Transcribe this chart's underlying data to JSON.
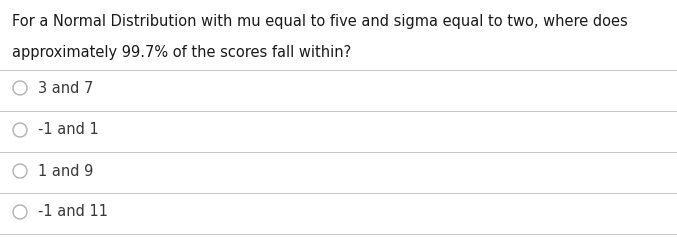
{
  "question_line1": "For a Normal Distribution with mu equal to five and sigma equal to two, where does",
  "question_line2": "approximately 99.7% of the scores fall within?",
  "options": [
    "3 and 7",
    "-1 and 1",
    "1 and 9",
    "-1 and 11"
  ],
  "background_color": "#ffffff",
  "text_color": "#1a1a1a",
  "option_text_color": "#3a3a3a",
  "line_color": "#c8c8c8",
  "circle_color": "#b0b0b0",
  "question_fontsize": 10.5,
  "option_fontsize": 10.5,
  "figsize": [
    6.77,
    2.37
  ],
  "dpi": 100
}
